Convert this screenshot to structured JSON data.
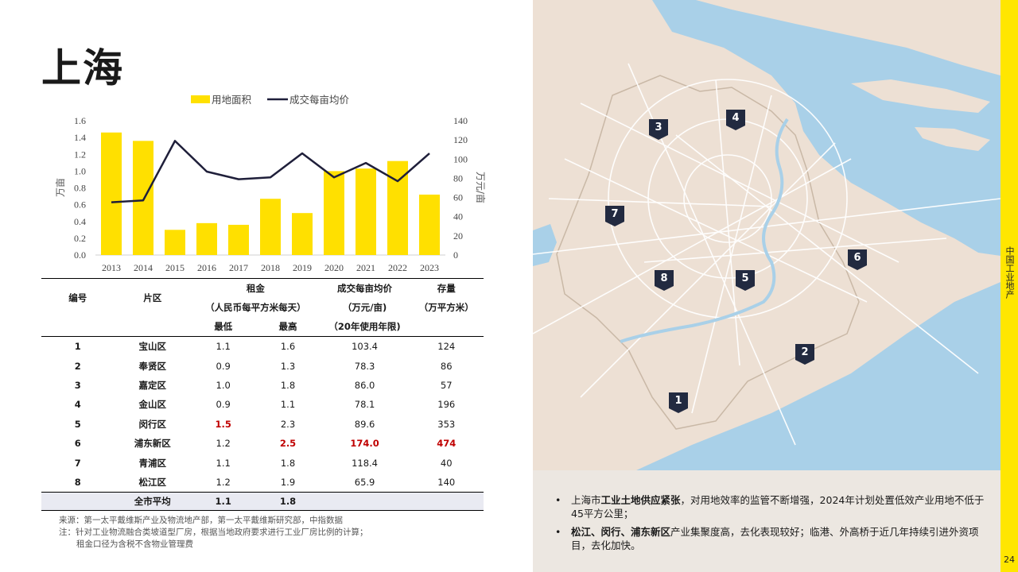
{
  "page": {
    "title": "上海",
    "page_number": "24",
    "side_label": "中国工业地产"
  },
  "chart_data": {
    "type": "bar",
    "categories": [
      "2013",
      "2014",
      "2015",
      "2016",
      "2017",
      "2018",
      "2019",
      "2020",
      "2021",
      "2022",
      "2023"
    ],
    "series": [
      {
        "name": "用地面积",
        "type": "bar",
        "axis": "left",
        "color": "#ffe000",
        "values": [
          1.46,
          1.36,
          0.3,
          0.38,
          0.36,
          0.67,
          0.5,
          1.0,
          1.03,
          1.12,
          0.72
        ]
      },
      {
        "name": "成交每亩均价",
        "type": "line",
        "axis": "right",
        "color": "#1f1f3a",
        "values": [
          55,
          57,
          119,
          87,
          79,
          81,
          106,
          81,
          96,
          77,
          106
        ]
      }
    ],
    "ylabel": "万亩",
    "ylabel_right": "万元/亩",
    "ylim": [
      0,
      1.6
    ],
    "ylim_right": [
      0,
      140
    ],
    "yticks": [
      "0.0",
      "0.2",
      "0.4",
      "0.6",
      "0.8",
      "1.0",
      "1.2",
      "1.4",
      "1.6"
    ],
    "yticks_right": [
      "0",
      "20",
      "40",
      "60",
      "80",
      "100",
      "120",
      "140"
    ],
    "legend_position": "top-center",
    "grid": false
  },
  "table": {
    "headers": {
      "id": "编号",
      "district": "片区",
      "rent": "租金",
      "rent_unit": "（人民币每平方米每天）",
      "rent_min": "最低",
      "rent_max": "最高",
      "price": "成交每亩均价",
      "price_unit": "（万元/亩)",
      "price_note": "（20年使用年限)",
      "stock": "存量",
      "stock_unit": "（万平方米）"
    },
    "rows": [
      {
        "id": "1",
        "district": "宝山区",
        "min": "1.1",
        "max": "1.6",
        "price": "103.4",
        "stock": "124"
      },
      {
        "id": "2",
        "district": "奉贤区",
        "min": "0.9",
        "max": "1.3",
        "price": "78.3",
        "stock": "86"
      },
      {
        "id": "3",
        "district": "嘉定区",
        "min": "1.0",
        "max": "1.8",
        "price": "86.0",
        "stock": "57"
      },
      {
        "id": "4",
        "district": "金山区",
        "min": "0.9",
        "max": "1.1",
        "price": "78.1",
        "stock": "196"
      },
      {
        "id": "5",
        "district": "闵行区",
        "min": "1.5",
        "max": "2.3",
        "price": "89.6",
        "stock": "353"
      },
      {
        "id": "6",
        "district": "浦东新区",
        "min": "1.2",
        "max": "2.5",
        "price": "174.0",
        "stock": "474"
      },
      {
        "id": "7",
        "district": "青浦区",
        "min": "1.1",
        "max": "1.8",
        "price": "118.4",
        "stock": "40"
      },
      {
        "id": "8",
        "district": "松江区",
        "min": "1.2",
        "max": "1.9",
        "price": "65.9",
        "stock": "140"
      }
    ],
    "average": {
      "label": "全市平均",
      "min": "1.1",
      "max": "1.8"
    },
    "highlight_color": "#c00000"
  },
  "notes": {
    "source": "来源：第一太平戴维斯产业及物流地产部，第一太平戴维斯研究部，中指数据",
    "note1": "注：针对工业物流融合类坡道型厂房，根据当地政府要求进行工业厂房比例的计算；",
    "note2": "租金口径为含税不含物业管理费"
  },
  "map": {
    "markers": [
      "1",
      "2",
      "3",
      "4",
      "5",
      "6",
      "7",
      "8"
    ],
    "colors": {
      "land": "#ede0d4",
      "water": "#a9d0e8",
      "marker": "#222a40",
      "road": "#ffffff"
    }
  },
  "bullets": [
    {
      "pre": "上海市",
      "bold": "工业土地供应紧张",
      "rest": "，对用地效率的监管不断增强，2024年计划处置低效产业用地不低于45平方公里；"
    },
    {
      "pre": "",
      "bold": "松江、闵行、浦东新区",
      "rest": "产业集聚度高，去化表现较好；临港、外高桥于近几年持续引进外资项目，去化加快。"
    }
  ]
}
